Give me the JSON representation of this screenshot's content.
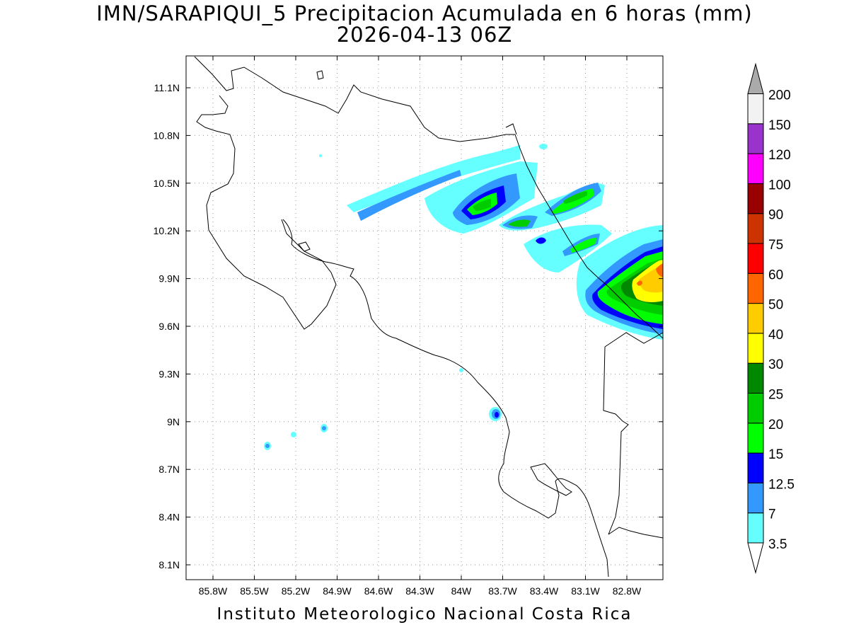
{
  "title": {
    "line1": "IMN/SARAPIQUI_5 Precipitacion Acumulada en 6 horas (mm)",
    "line2": "2026-04-13 06Z"
  },
  "footer": "Instituto Meteorologico Nacional Costa Rica",
  "map": {
    "lon_range": [
      -86.05,
      -82.6
    ],
    "lat_range": [
      8.0,
      11.3
    ],
    "x_ticks": [
      "85.8W",
      "85.5W",
      "85.2W",
      "84.9W",
      "84.6W",
      "84.3W",
      "84W",
      "83.7W",
      "83.4W",
      "83.1W",
      "82.8W"
    ],
    "y_ticks": [
      "11.1N",
      "10.8N",
      "10.5N",
      "10.2N",
      "9.9N",
      "9.6N",
      "9.3N",
      "9N",
      "8.7N",
      "8.4N",
      "8.1N"
    ],
    "grid": "dotted"
  },
  "colorbar": {
    "labels": [
      "3.5",
      "7",
      "12.5",
      "15",
      "20",
      "25",
      "30",
      "40",
      "50",
      "60",
      "75",
      "90",
      "100",
      "120",
      "150",
      "200"
    ],
    "colors": [
      "#66ffff",
      "#3399ff",
      "#0000ff",
      "#00ff00",
      "#00cc00",
      "#008800",
      "#ffff00",
      "#ffcc00",
      "#ff6600",
      "#ff0000",
      "#cc3300",
      "#990000",
      "#ff00ff",
      "#9933cc",
      "#f2f2f2",
      "#aaaaaa"
    ]
  }
}
